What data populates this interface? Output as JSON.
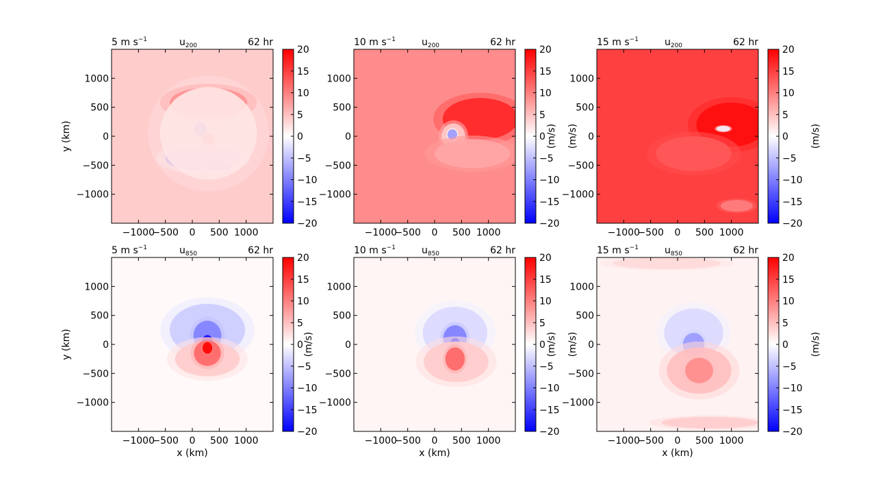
{
  "figure": {
    "colors": {
      "negative_max": "#0000ff",
      "zero": "#ffffff",
      "positive_max": "#ff0000"
    }
  },
  "chart_data": [
    {
      "type": "heatmap",
      "variable_label": "u",
      "variable_sub": "200",
      "title_left": "5 m s",
      "title_left_sup": "−1",
      "title_right": "62 hr",
      "ylabel": "y (km)",
      "xlabel": "",
      "xticks": [
        "−1000",
        "−500",
        "0",
        "500",
        "1000"
      ],
      "yticks": [
        "1000",
        "500",
        "0",
        "−500",
        "−1000"
      ],
      "xlim": [
        -1500,
        1500
      ],
      "ylim": [
        -1500,
        1500
      ],
      "colorbar": {
        "label": "",
        "ticks": [
          "20",
          "15",
          "10",
          "5",
          "0",
          "−5",
          "−10",
          "−15",
          "−20"
        ],
        "range": [
          -20,
          20
        ]
      },
      "field": {
        "background": 4,
        "features": [
          {
            "x": 300,
            "y": 580,
            "rx": 720,
            "ry": 260,
            "value": 17
          },
          {
            "x": 250,
            "y": 560,
            "rx": 500,
            "ry": 180,
            "value": 14
          },
          {
            "x": 200,
            "y": -380,
            "rx": 700,
            "ry": 220,
            "value": -6
          },
          {
            "x": 150,
            "y": 120,
            "rx": 120,
            "ry": 120,
            "value": -15
          },
          {
            "x": 300,
            "y": -50,
            "rx": 110,
            "ry": 90,
            "value": 18
          },
          {
            "x": 500,
            "y": -500,
            "rx": 260,
            "ry": 90,
            "value": -8
          },
          {
            "x": 300,
            "y": 50,
            "rx": 900,
            "ry": 800,
            "value": 2
          }
        ]
      }
    },
    {
      "type": "heatmap",
      "variable_label": "u",
      "variable_sub": "200",
      "title_left": "10 m s",
      "title_left_sup": "−1",
      "title_right": "62 hr",
      "ylabel": "",
      "xlabel": "",
      "xticks": [
        "−1000",
        "−500",
        "0",
        "500",
        "1000"
      ],
      "yticks": [
        "1000",
        "500",
        "0",
        "−500",
        "−1000"
      ],
      "xlim": [
        -1500,
        1500
      ],
      "ylim": [
        -1500,
        1500
      ],
      "colorbar": {
        "label": "(m/s)",
        "ticks": [
          "20",
          "15",
          "10",
          "5",
          "0",
          "−5",
          "−10",
          "−15",
          "−20"
        ],
        "range": [
          -20,
          20
        ]
      },
      "field": {
        "background": 9,
        "features": [
          {
            "x": 850,
            "y": 300,
            "rx": 700,
            "ry": 360,
            "value": 17
          },
          {
            "x": 350,
            "y": 0,
            "rx": 220,
            "ry": 220,
            "value": 4
          },
          {
            "x": 330,
            "y": 30,
            "rx": 90,
            "ry": 90,
            "value": -8
          },
          {
            "x": 700,
            "y": -300,
            "rx": 700,
            "ry": 250,
            "value": 7
          }
        ]
      }
    },
    {
      "type": "heatmap",
      "variable_label": "u",
      "variable_sub": "200",
      "title_left": "15 m s",
      "title_left_sup": "−1",
      "title_right": "62 hr",
      "ylabel": "(m/s)",
      "xlabel": "",
      "xticks": [
        "−1000",
        "−500",
        "0",
        "500",
        "1000"
      ],
      "yticks": [
        "1000",
        "500",
        "0",
        "−500",
        "−1000"
      ],
      "xlim": [
        -1500,
        1500
      ],
      "ylim": [
        -1500,
        1500
      ],
      "colorbar": {
        "label": "(m/s)",
        "ticks": [
          "20",
          "15",
          "10",
          "5",
          "0",
          "−5",
          "−10",
          "−15",
          "−20"
        ],
        "range": [
          -20,
          20
        ]
      },
      "field": {
        "background": 15,
        "features": [
          {
            "x": 1000,
            "y": 200,
            "rx": 650,
            "ry": 380,
            "value": 19
          },
          {
            "x": 850,
            "y": 130,
            "rx": 130,
            "ry": 50,
            "value": -1
          },
          {
            "x": 300,
            "y": -300,
            "rx": 700,
            "ry": 300,
            "value": 13
          },
          {
            "x": 1100,
            "y": -1200,
            "rx": 300,
            "ry": 100,
            "value": 10
          }
        ]
      }
    },
    {
      "type": "heatmap",
      "variable_label": "u",
      "variable_sub": "850",
      "title_left": "5 m s",
      "title_left_sup": "−1",
      "title_right": "62 hr",
      "ylabel": "y (km)",
      "xlabel": "x (km)",
      "xticks": [
        "−1000",
        "−500",
        "0",
        "500",
        "1000"
      ],
      "yticks": [
        "1000",
        "500",
        "0",
        "−500",
        "−1000"
      ],
      "xlim": [
        -1500,
        1500
      ],
      "ylim": [
        -1500,
        1500
      ],
      "colorbar": {
        "label": "",
        "ticks": [
          "20",
          "15",
          "10",
          "5",
          "0",
          "−5",
          "−10",
          "−15",
          "−20"
        ],
        "range": [
          -20,
          20
        ]
      },
      "field": {
        "background": 0.5,
        "features": [
          {
            "x": 280,
            "y": 250,
            "rx": 700,
            "ry": 450,
            "value": -4
          },
          {
            "x": 280,
            "y": 150,
            "rx": 260,
            "ry": 260,
            "value": -10
          },
          {
            "x": 280,
            "y": 50,
            "rx": 100,
            "ry": 110,
            "value": -20
          },
          {
            "x": 280,
            "y": -250,
            "rx": 600,
            "ry": 300,
            "value": 4
          },
          {
            "x": 280,
            "y": -150,
            "rx": 250,
            "ry": 220,
            "value": 12
          },
          {
            "x": 280,
            "y": -60,
            "rx": 90,
            "ry": 100,
            "value": 20
          }
        ]
      }
    },
    {
      "type": "heatmap",
      "variable_label": "u",
      "variable_sub": "850",
      "title_left": "10 m s",
      "title_left_sup": "−1",
      "title_right": "62 hr",
      "ylabel": "(m/s)",
      "xlabel": "x (km)",
      "xticks": [
        "−1000",
        "−500",
        "0",
        "500",
        "1000"
      ],
      "yticks": [
        "1000",
        "500",
        "0",
        "−500",
        "−1000"
      ],
      "xlim": [
        -1500,
        1500
      ],
      "ylim": [
        -1500,
        1500
      ],
      "colorbar": {
        "label": "(m/s)",
        "ticks": [
          "20",
          "15",
          "10",
          "5",
          "0",
          "−5",
          "−10",
          "−15",
          "−20"
        ],
        "range": [
          -20,
          20
        ]
      },
      "field": {
        "background": 0.8,
        "features": [
          {
            "x": 380,
            "y": 200,
            "rx": 600,
            "ry": 450,
            "value": -3
          },
          {
            "x": 380,
            "y": 100,
            "rx": 220,
            "ry": 230,
            "value": -10
          },
          {
            "x": 380,
            "y": 20,
            "rx": 90,
            "ry": 90,
            "value": -18
          },
          {
            "x": 400,
            "y": -300,
            "rx": 600,
            "ry": 350,
            "value": 4
          },
          {
            "x": 380,
            "y": -250,
            "rx": 180,
            "ry": 200,
            "value": 12
          }
        ]
      }
    },
    {
      "type": "heatmap",
      "variable_label": "u",
      "variable_sub": "850",
      "title_left": "15 m s",
      "title_left_sup": "−1",
      "title_right": "62 hr",
      "ylabel": "(m/s)",
      "xlabel": "x (km)",
      "xticks": [
        "−1000",
        "−500",
        "0",
        "500",
        "1000"
      ],
      "yticks": [
        "1000",
        "500",
        "0",
        "−500",
        "−1000"
      ],
      "xlim": [
        -1500,
        1500
      ],
      "ylim": [
        -1500,
        1500
      ],
      "colorbar": {
        "label": "(m/s)",
        "ticks": [
          "20",
          "15",
          "10",
          "5",
          "0",
          "−5",
          "−10",
          "−15",
          "−20"
        ],
        "range": [
          -20,
          20
        ]
      },
      "field": {
        "background": 1,
        "features": [
          {
            "x": 300,
            "y": 200,
            "rx": 550,
            "ry": 420,
            "value": -3
          },
          {
            "x": 300,
            "y": 0,
            "rx": 200,
            "ry": 200,
            "value": -8
          },
          {
            "x": 400,
            "y": -450,
            "rx": 600,
            "ry": 400,
            "value": 5
          },
          {
            "x": 400,
            "y": -450,
            "rx": 260,
            "ry": 220,
            "value": 9
          },
          {
            "x": 600,
            "y": -1350,
            "rx": 900,
            "ry": 100,
            "value": 4
          },
          {
            "x": -200,
            "y": 1400,
            "rx": 1000,
            "ry": 100,
            "value": 3
          }
        ]
      }
    }
  ]
}
